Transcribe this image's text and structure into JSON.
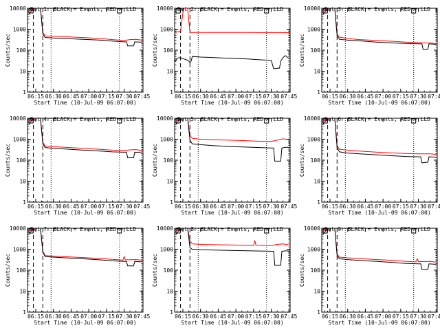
{
  "window": {
    "title": ""
  },
  "chart_data": {
    "type": "line",
    "layout": "3x3 grid",
    "ylabel": "Counts/sec",
    "xlabel": "Start Time (10-Jul-09 06:07:00)",
    "yscale": "log",
    "ylim": [
      1,
      10000
    ],
    "y_ticks": [
      "1",
      "10",
      "100",
      "1000",
      "10000"
    ],
    "x_ticks": [
      "06:15",
      "06:30",
      "06:45",
      "07:00",
      "07:15",
      "07:30",
      "07:45"
    ],
    "x_ticks_minutes": [
      15,
      30,
      45,
      60,
      75,
      90,
      105
    ],
    "xlim_minutes": [
      8,
      106
    ],
    "colors": {
      "events": "#000000",
      "lld": "#ff0000"
    },
    "panels": [
      {
        "title": "Det 1r BLACK = Events, RED = LLD",
        "events": [
          [
            9,
            5000
          ],
          [
            13,
            10000
          ],
          [
            14,
            10000
          ],
          [
            19,
            10000
          ],
          [
            21,
            600
          ],
          [
            23,
            400
          ],
          [
            30,
            380
          ],
          [
            40,
            360
          ],
          [
            55,
            330
          ],
          [
            70,
            300
          ],
          [
            80,
            270
          ],
          [
            90,
            250
          ],
          [
            92,
            250
          ],
          [
            93,
            160
          ],
          [
            98,
            160
          ],
          [
            99,
            250
          ],
          [
            105,
            240
          ]
        ],
        "lld": [
          [
            9,
            7000
          ],
          [
            13,
            10000
          ],
          [
            14,
            10000
          ],
          [
            19,
            10000
          ],
          [
            21,
            700
          ],
          [
            23,
            480
          ],
          [
            30,
            460
          ],
          [
            40,
            440
          ],
          [
            55,
            400
          ],
          [
            70,
            360
          ],
          [
            80,
            320
          ],
          [
            90,
            290
          ],
          [
            95,
            320
          ],
          [
            100,
            330
          ],
          [
            105,
            300
          ]
        ]
      },
      {
        "title": "Det 2r BLACK = Events, RED = LLD",
        "events": [
          [
            8,
            40
          ],
          [
            9,
            30
          ],
          [
            10,
            40
          ],
          [
            12,
            45
          ],
          [
            18,
            35
          ],
          [
            20,
            30
          ],
          [
            21,
            25
          ],
          [
            22,
            30
          ],
          [
            23,
            50
          ],
          [
            30,
            47
          ],
          [
            40,
            45
          ],
          [
            50,
            42
          ],
          [
            60,
            40
          ],
          [
            70,
            38
          ],
          [
            80,
            35
          ],
          [
            90,
            33
          ],
          [
            92,
            13
          ],
          [
            97,
            14
          ],
          [
            98,
            30
          ],
          [
            100,
            45
          ],
          [
            102,
            55
          ],
          [
            105,
            40
          ]
        ],
        "lld": [
          [
            8,
            700
          ],
          [
            13,
            800
          ],
          [
            15,
            6000
          ],
          [
            16,
            10000
          ],
          [
            19,
            10000
          ],
          [
            21,
            700
          ],
          [
            30,
            700
          ],
          [
            50,
            700
          ],
          [
            70,
            700
          ],
          [
            90,
            690
          ],
          [
            100,
            690
          ],
          [
            105,
            680
          ]
        ]
      },
      {
        "title": "Det 3r BLACK = Events, RED = LLD",
        "events": [
          [
            9,
            5000
          ],
          [
            13,
            10000
          ],
          [
            14,
            10000
          ],
          [
            19,
            10000
          ],
          [
            21,
            500
          ],
          [
            23,
            330
          ],
          [
            30,
            300
          ],
          [
            40,
            280
          ],
          [
            55,
            240
          ],
          [
            70,
            220
          ],
          [
            80,
            210
          ],
          [
            90,
            200
          ],
          [
            93,
            200
          ],
          [
            94,
            110
          ],
          [
            98,
            110
          ],
          [
            99,
            200
          ],
          [
            105,
            190
          ]
        ],
        "lld": [
          [
            9,
            7000
          ],
          [
            13,
            10000
          ],
          [
            14,
            10000
          ],
          [
            19,
            10000
          ],
          [
            21,
            600
          ],
          [
            23,
            420
          ],
          [
            30,
            360
          ],
          [
            40,
            320
          ],
          [
            55,
            290
          ],
          [
            70,
            260
          ],
          [
            80,
            240
          ],
          [
            90,
            230
          ],
          [
            100,
            220
          ],
          [
            105,
            210
          ]
        ]
      },
      {
        "title": "Det 4r BLACK = Events, RED = LLD",
        "events": [
          [
            9,
            5000
          ],
          [
            13,
            10000
          ],
          [
            14,
            10000
          ],
          [
            19,
            10000
          ],
          [
            21,
            600
          ],
          [
            23,
            400
          ],
          [
            30,
            370
          ],
          [
            40,
            340
          ],
          [
            55,
            300
          ],
          [
            70,
            270
          ],
          [
            80,
            250
          ],
          [
            90,
            240
          ],
          [
            92,
            240
          ],
          [
            93,
            130
          ],
          [
            98,
            130
          ],
          [
            99,
            240
          ],
          [
            105,
            230
          ]
        ],
        "lld": [
          [
            9,
            7000
          ],
          [
            13,
            10000
          ],
          [
            14,
            10000
          ],
          [
            19,
            10000
          ],
          [
            21,
            700
          ],
          [
            23,
            470
          ],
          [
            30,
            440
          ],
          [
            40,
            410
          ],
          [
            55,
            370
          ],
          [
            70,
            330
          ],
          [
            80,
            300
          ],
          [
            90,
            290
          ],
          [
            95,
            310
          ],
          [
            100,
            320
          ],
          [
            105,
            290
          ]
        ]
      },
      {
        "title": "Det 5r BLACK = Events, RED = LLD",
        "events": [
          [
            9,
            5000
          ],
          [
            13,
            10000
          ],
          [
            14,
            10000
          ],
          [
            19,
            10000
          ],
          [
            21,
            900
          ],
          [
            23,
            600
          ],
          [
            30,
            550
          ],
          [
            40,
            500
          ],
          [
            55,
            450
          ],
          [
            70,
            420
          ],
          [
            80,
            400
          ],
          [
            90,
            380
          ],
          [
            92,
            380
          ],
          [
            93,
            90
          ],
          [
            98,
            90
          ],
          [
            99,
            380
          ],
          [
            103,
            420
          ],
          [
            105,
            380
          ]
        ],
        "lld": [
          [
            9,
            7000
          ],
          [
            13,
            10000
          ],
          [
            14,
            10000
          ],
          [
            19,
            10000
          ],
          [
            21,
            1500
          ],
          [
            23,
            1100
          ],
          [
            30,
            1000
          ],
          [
            40,
            950
          ],
          [
            55,
            900
          ],
          [
            70,
            850
          ],
          [
            80,
            800
          ],
          [
            90,
            780
          ],
          [
            95,
            900
          ],
          [
            100,
            1050
          ],
          [
            105,
            950
          ]
        ]
      },
      {
        "title": "Det 6r BLACK = Events, RED = LLD",
        "events": [
          [
            9,
            5000
          ],
          [
            13,
            10000
          ],
          [
            14,
            10000
          ],
          [
            19,
            10000
          ],
          [
            21,
            400
          ],
          [
            23,
            250
          ],
          [
            30,
            220
          ],
          [
            40,
            200
          ],
          [
            55,
            180
          ],
          [
            70,
            160
          ],
          [
            80,
            150
          ],
          [
            90,
            145
          ],
          [
            92,
            145
          ],
          [
            93,
            75
          ],
          [
            98,
            80
          ],
          [
            99,
            145
          ],
          [
            105,
            140
          ]
        ],
        "lld": [
          [
            9,
            7000
          ],
          [
            13,
            10000
          ],
          [
            14,
            10000
          ],
          [
            19,
            10000
          ],
          [
            21,
            500
          ],
          [
            23,
            330
          ],
          [
            30,
            300
          ],
          [
            40,
            270
          ],
          [
            55,
            240
          ],
          [
            70,
            220
          ],
          [
            80,
            210
          ],
          [
            90,
            200
          ],
          [
            100,
            200
          ],
          [
            105,
            190
          ]
        ]
      },
      {
        "title": "Det 7r BLACK = Events, RED = LLD",
        "events": [
          [
            9,
            5000
          ],
          [
            13,
            10000
          ],
          [
            14,
            10000
          ],
          [
            19,
            10000
          ],
          [
            21,
            700
          ],
          [
            23,
            450
          ],
          [
            30,
            420
          ],
          [
            40,
            390
          ],
          [
            55,
            350
          ],
          [
            70,
            310
          ],
          [
            80,
            280
          ],
          [
            90,
            260
          ],
          [
            92,
            260
          ],
          [
            93,
            160
          ],
          [
            98,
            160
          ],
          [
            99,
            260
          ],
          [
            105,
            250
          ]
        ],
        "lld": [
          [
            9,
            7000
          ],
          [
            13,
            10000
          ],
          [
            14,
            10000
          ],
          [
            19,
            10000
          ],
          [
            21,
            800
          ],
          [
            23,
            500
          ],
          [
            30,
            470
          ],
          [
            40,
            440
          ],
          [
            55,
            400
          ],
          [
            70,
            360
          ],
          [
            80,
            330
          ],
          [
            89,
            300
          ],
          [
            90,
            450
          ],
          [
            91,
            310
          ],
          [
            100,
            320
          ],
          [
            105,
            300
          ]
        ]
      },
      {
        "title": "Det 8r BLACK = Events, RED = LLD",
        "events": [
          [
            9,
            5000
          ],
          [
            13,
            10000
          ],
          [
            14,
            10000
          ],
          [
            19,
            10000
          ],
          [
            21,
            1200
          ],
          [
            23,
            1000
          ],
          [
            30,
            950
          ],
          [
            40,
            920
          ],
          [
            55,
            880
          ],
          [
            70,
            850
          ],
          [
            80,
            820
          ],
          [
            90,
            800
          ],
          [
            92,
            800
          ],
          [
            93,
            170
          ],
          [
            98,
            170
          ],
          [
            99,
            800
          ],
          [
            103,
            850
          ],
          [
            105,
            800
          ]
        ],
        "lld": [
          [
            9,
            7000
          ],
          [
            13,
            10000
          ],
          [
            14,
            10000
          ],
          [
            19,
            10000
          ],
          [
            21,
            2500
          ],
          [
            23,
            1800
          ],
          [
            30,
            1700
          ],
          [
            40,
            1650
          ],
          [
            55,
            1600
          ],
          [
            70,
            1550
          ],
          [
            75,
            1500
          ],
          [
            76,
            2600
          ],
          [
            77,
            1550
          ],
          [
            90,
            1500
          ],
          [
            95,
            1700
          ],
          [
            100,
            1800
          ],
          [
            105,
            1600
          ]
        ]
      },
      {
        "title": "Det 9r BLACK = Events, RED = LLD",
        "events": [
          [
            9,
            5000
          ],
          [
            13,
            10000
          ],
          [
            14,
            10000
          ],
          [
            19,
            10000
          ],
          [
            21,
            500
          ],
          [
            23,
            350
          ],
          [
            30,
            320
          ],
          [
            40,
            290
          ],
          [
            55,
            260
          ],
          [
            70,
            230
          ],
          [
            80,
            210
          ],
          [
            90,
            200
          ],
          [
            92,
            200
          ],
          [
            93,
            110
          ],
          [
            98,
            110
          ],
          [
            99,
            200
          ],
          [
            105,
            190
          ]
        ],
        "lld": [
          [
            9,
            7000
          ],
          [
            13,
            10000
          ],
          [
            14,
            10000
          ],
          [
            19,
            10000
          ],
          [
            21,
            600
          ],
          [
            23,
            420
          ],
          [
            30,
            390
          ],
          [
            40,
            360
          ],
          [
            55,
            320
          ],
          [
            70,
            290
          ],
          [
            80,
            260
          ],
          [
            88,
            250
          ],
          [
            89,
            350
          ],
          [
            90,
            255
          ],
          [
            100,
            260
          ],
          [
            105,
            240
          ]
        ]
      }
    ]
  }
}
